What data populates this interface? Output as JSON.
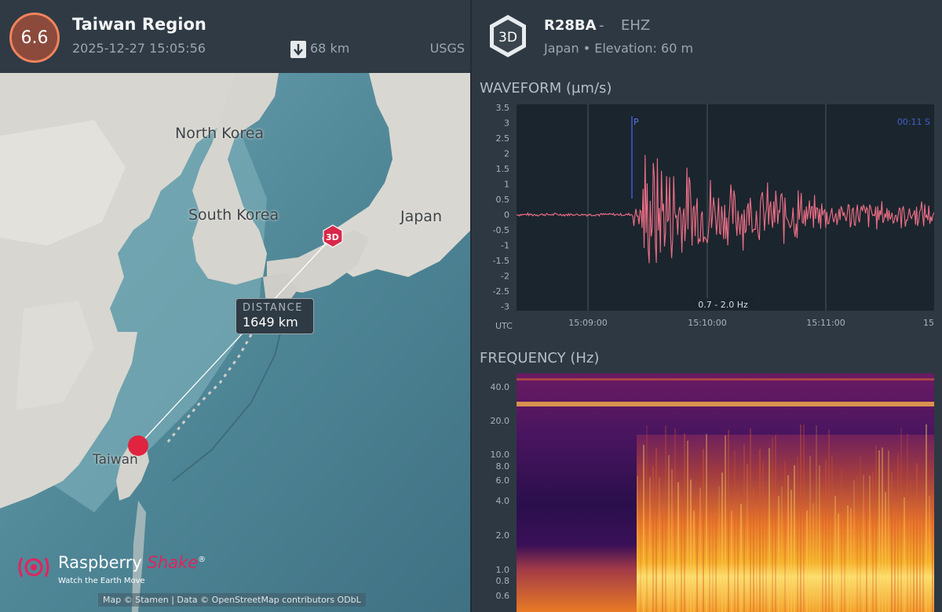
{
  "event": {
    "magnitude": "6.6",
    "region": "Taiwan Region",
    "datetime": "2025-12-27 15:05:56",
    "depth": "68 km",
    "source": "USGS",
    "badge_color": "#f0845c"
  },
  "map": {
    "labels": {
      "north_korea": "North Korea",
      "south_korea": "South Korea",
      "japan": "Japan",
      "taiwan": "Taiwan"
    },
    "station_marker": "3D",
    "distance_title": "DISTANCE",
    "distance_value": "1649 km",
    "brand_name_1": "Raspberry",
    "brand_name_2": "Shake",
    "brand_reg": "®",
    "brand_tagline": "Watch the Earth Move",
    "attribution": "Map © Stamen | Data © OpenStreetMap contributors ODbL",
    "epicenter_color": "#e0243f"
  },
  "station": {
    "badge": "3D",
    "code": "R28BA",
    "separator": "-",
    "channel": "EHZ",
    "location": "Japan • Elevation: 60 m"
  },
  "waveform": {
    "title": "WAVEFORM (µm/s)",
    "y_ticks": [
      "3.5",
      "3",
      "2.5",
      "2",
      "1.5",
      "1",
      "0.5",
      "0",
      "-0.5",
      "-1",
      "-1.5",
      "-2",
      "-2.5",
      "-3"
    ],
    "x_axis_label": "UTC",
    "x_ticks": [
      "15:09:00",
      "15:10:00",
      "15:11:00",
      "15"
    ],
    "p_marker": "P",
    "elapsed": "00:11  S",
    "filter": "0.7 - 2.0 Hz",
    "trace_color": "#f07088"
  },
  "frequency": {
    "title": "FREQUENCY (Hz)",
    "y_ticks": [
      "40.0",
      "20.0",
      "10.0",
      "8.0",
      "6.0",
      "4.0",
      "2.0",
      "1.0",
      "0.8",
      "0.6"
    ]
  }
}
